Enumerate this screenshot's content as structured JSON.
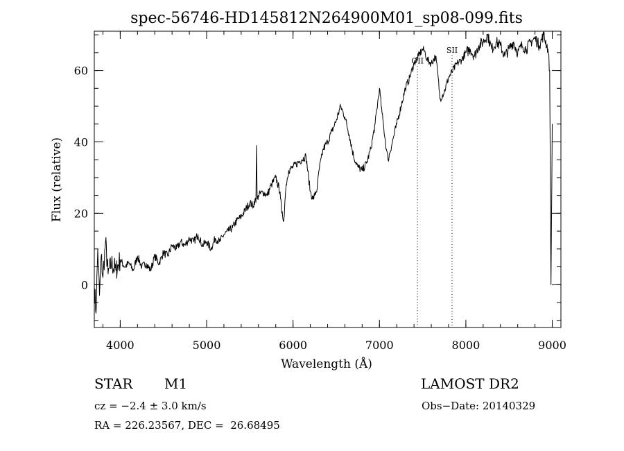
{
  "chart_data": {
    "type": "line",
    "title": "spec-56746-HD145812N264900M01_sp08-099.fits",
    "xlabel": "Wavelength (Å)",
    "ylabel": "Flux (relative)",
    "xlim": [
      3700,
      9100
    ],
    "ylim": [
      -12,
      71
    ],
    "x_ticks": [
      4000,
      5000,
      6000,
      7000,
      8000,
      9000
    ],
    "y_ticks": [
      0,
      20,
      40,
      60
    ],
    "x_minor_step": 200,
    "y_minor_step": 5,
    "grid": false,
    "legend": "none",
    "line_color": "#000000",
    "series": [
      {
        "x": [
          3700,
          3720,
          3740,
          3760,
          3780,
          3800,
          3830,
          3860,
          3900,
          3950,
          4000,
          4050,
          4100,
          4150,
          4200,
          4250,
          4300,
          4350,
          4400,
          4450,
          4500,
          4550,
          4600,
          4650,
          4700,
          4750,
          4800,
          4850,
          4900,
          4950,
          5000,
          5050,
          5100,
          5150,
          5200,
          5250,
          5300,
          5350,
          5400,
          5450,
          5500,
          5540,
          5560,
          5570,
          5577,
          5585,
          5600,
          5650,
          5700,
          5750,
          5800,
          5850,
          5870,
          5880,
          5893,
          5905,
          5920,
          5950,
          6000,
          6050,
          6100,
          6150,
          6200,
          6230,
          6250,
          6280,
          6300,
          6350,
          6400,
          6450,
          6500,
          6550,
          6600,
          6650,
          6700,
          6750,
          6800,
          6850,
          6900,
          6950,
          7000,
          7030,
          7050,
          7080,
          7100,
          7150,
          7200,
          7250,
          7300,
          7350,
          7400,
          7450,
          7500,
          7530,
          7550,
          7600,
          7650,
          7680,
          7700,
          7750,
          7800,
          7850,
          7900,
          7950,
          8000,
          8050,
          8100,
          8150,
          8200,
          8250,
          8300,
          8350,
          8400,
          8450,
          8500,
          8550,
          8600,
          8650,
          8700,
          8750,
          8800,
          8850,
          8900,
          8950,
          8970,
          8985,
          9000
        ],
        "y": [
          0,
          -8,
          10,
          -3,
          8,
          2,
          12,
          3,
          6,
          4,
          7,
          5,
          6,
          4,
          8,
          5,
          6,
          4,
          8,
          6,
          9,
          8,
          11,
          10,
          12,
          11,
          13,
          12,
          14,
          11,
          12,
          10,
          13,
          12,
          14,
          15,
          16,
          18,
          19,
          21,
          23,
          22,
          24,
          23,
          39,
          24,
          25,
          26,
          25,
          28,
          30,
          26,
          20,
          19,
          18,
          23,
          28,
          32,
          33,
          34,
          35,
          36,
          26,
          24,
          25,
          27,
          32,
          38,
          40,
          43,
          46,
          50,
          47,
          42,
          36,
          33,
          32,
          34,
          38,
          45,
          55,
          48,
          44,
          38,
          35,
          40,
          45,
          50,
          55,
          58,
          62,
          64,
          66,
          65,
          63,
          62,
          64,
          58,
          52,
          54,
          58,
          60,
          62,
          63,
          65,
          66,
          64,
          67,
          68,
          70,
          66,
          68,
          67,
          64,
          66,
          68,
          65,
          67,
          66,
          68,
          69,
          67,
          70,
          66,
          60,
          0,
          45
        ]
      }
    ],
    "annotations": [
      {
        "label": "OII",
        "x": 7440,
        "y": 62,
        "vline": true
      },
      {
        "label": "SII",
        "x": 7840,
        "y": 65,
        "vline": true
      }
    ]
  },
  "info": {
    "object_class": "STAR",
    "subclass": "M1",
    "survey": "LAMOST DR2",
    "cz": "cz = −2.4 ± 3.0 km/s",
    "obs_date": "Obs−Date: 20140329",
    "coords": "RA = 226.23567, DEC =  26.68495"
  }
}
